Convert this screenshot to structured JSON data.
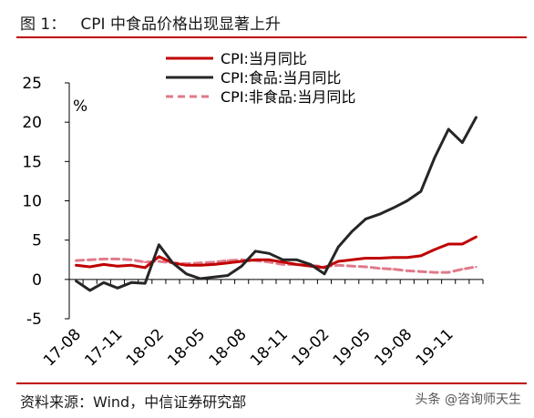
{
  "figure": {
    "title": "图 1：   CPI 中食品价格出现显著上升",
    "source": "资料来源：Wind，中信证券研究部",
    "watermark": "头条 @咨询师天生"
  },
  "chart_data": {
    "type": "line",
    "title": "",
    "xlabel": "",
    "ylabel": "%",
    "ylim": [
      -5,
      25
    ],
    "yticks": [
      -5,
      0,
      5,
      10,
      15,
      20,
      25
    ],
    "x": [
      "17-08",
      "17-09",
      "17-10",
      "17-11",
      "17-12",
      "18-01",
      "18-02",
      "18-03",
      "18-04",
      "18-05",
      "18-06",
      "18-07",
      "18-08",
      "18-09",
      "18-10",
      "18-11",
      "18-12",
      "19-01",
      "19-02",
      "19-03",
      "19-04",
      "19-05",
      "19-06",
      "19-07",
      "19-08",
      "19-09",
      "19-10",
      "19-11",
      "19-12",
      "20-01"
    ],
    "xtick_labels": [
      "17-08",
      "17-11",
      "18-02",
      "18-05",
      "18-08",
      "18-11",
      "19-02",
      "19-05",
      "19-08",
      "19-11"
    ],
    "legend": "top-right",
    "grid": false,
    "series": [
      {
        "name": "CPI:当月同比",
        "color": "#c00000",
        "style": "solid",
        "values": [
          1.8,
          1.6,
          1.9,
          1.7,
          1.8,
          1.5,
          2.9,
          2.1,
          1.8,
          1.8,
          1.9,
          2.1,
          2.3,
          2.5,
          2.5,
          2.2,
          1.9,
          1.7,
          1.5,
          2.3,
          2.5,
          2.7,
          2.7,
          2.8,
          2.8,
          3.0,
          3.8,
          4.5,
          4.5,
          5.4
        ]
      },
      {
        "name": "CPI:食品:当月同比",
        "color": "#262626",
        "style": "solid",
        "values": [
          -0.2,
          -1.4,
          -0.4,
          -1.1,
          -0.4,
          -0.5,
          4.4,
          2.1,
          0.7,
          0.1,
          0.3,
          0.5,
          1.7,
          3.6,
          3.3,
          2.5,
          2.5,
          1.9,
          0.7,
          4.1,
          6.1,
          7.7,
          8.3,
          9.1,
          10.0,
          11.2,
          15.5,
          19.1,
          17.4,
          20.6
        ]
      },
      {
        "name": "CPI:非食品:当月同比",
        "color": "#e07a8a",
        "style": "dashed",
        "values": [
          2.4,
          2.5,
          2.6,
          2.6,
          2.5,
          2.2,
          2.3,
          2.1,
          2.0,
          2.1,
          2.2,
          2.4,
          2.5,
          2.4,
          2.2,
          1.9,
          1.9,
          1.8,
          1.6,
          1.8,
          1.7,
          1.6,
          1.4,
          1.3,
          1.1,
          1.0,
          0.9,
          0.9,
          1.3,
          1.6
        ]
      }
    ]
  }
}
